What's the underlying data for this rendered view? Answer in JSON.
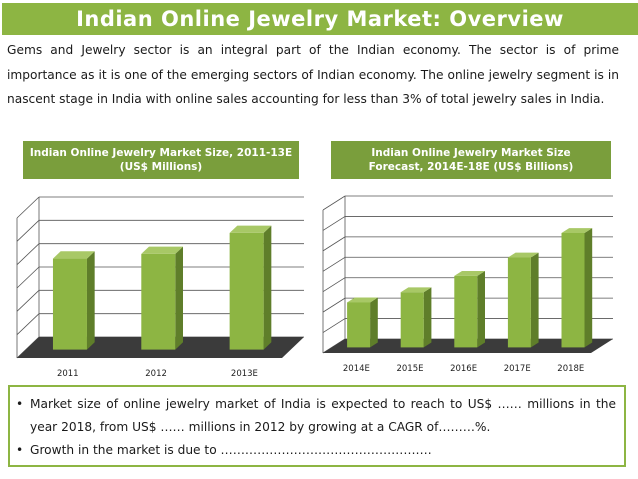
{
  "title": "Indian Online Jewelry Market: Overview",
  "intro_text": "Gems and Jewelry sector is an integral part of the Indian economy. The sector is of prime importance as it is one of the emerging sectors of Indian economy. The online jewelry segment is in nascent stage in India with online sales accounting for less than 3% of total jewelry sales in India.",
  "colors": {
    "accent": "#8db543",
    "header_bg": "#7a9e3c",
    "bar_front": "#8db543",
    "bar_side": "#5f7e2a",
    "floor": "#3b3b3b"
  },
  "chart_data": [
    {
      "type": "bar",
      "title": "Indian Online Jewelry Market Size, 2011-13E (US$ Millions)",
      "title_lines": [
        "Indian Online Jewelry Market Size, 2011-13E",
        "(US$ Millions)"
      ],
      "categories": [
        "2011",
        "2012",
        "2013E"
      ],
      "values": [
        3.9,
        4.1,
        5.0
      ],
      "ylim": [
        0,
        6
      ],
      "gridlines": 6,
      "xlabel": "",
      "ylabel": "",
      "style": "3d"
    },
    {
      "type": "bar",
      "title": "Indian Online Jewelry Market Size Forecast, 2014E-18E (US$ Billions)",
      "title_lines": [
        "Indian Online Jewelry Market Size",
        "Forecast, 2014E-18E (US$ Billions)"
      ],
      "categories": [
        "2014E",
        "2015E",
        "2016E",
        "2017E",
        "2018E"
      ],
      "values": [
        2.2,
        2.7,
        3.5,
        4.4,
        5.6
      ],
      "ylim": [
        0,
        7
      ],
      "gridlines": 7,
      "xlabel": "",
      "ylabel": "",
      "style": "3d"
    }
  ],
  "bullets": [
    "Market size of online jewelry market of India is expected to reach to US$ …… millions in the year 2018, from US$ …… millions in 2012 by growing at a CAGR of………%.",
    "Growth in the market is due to ……………………………………………."
  ]
}
